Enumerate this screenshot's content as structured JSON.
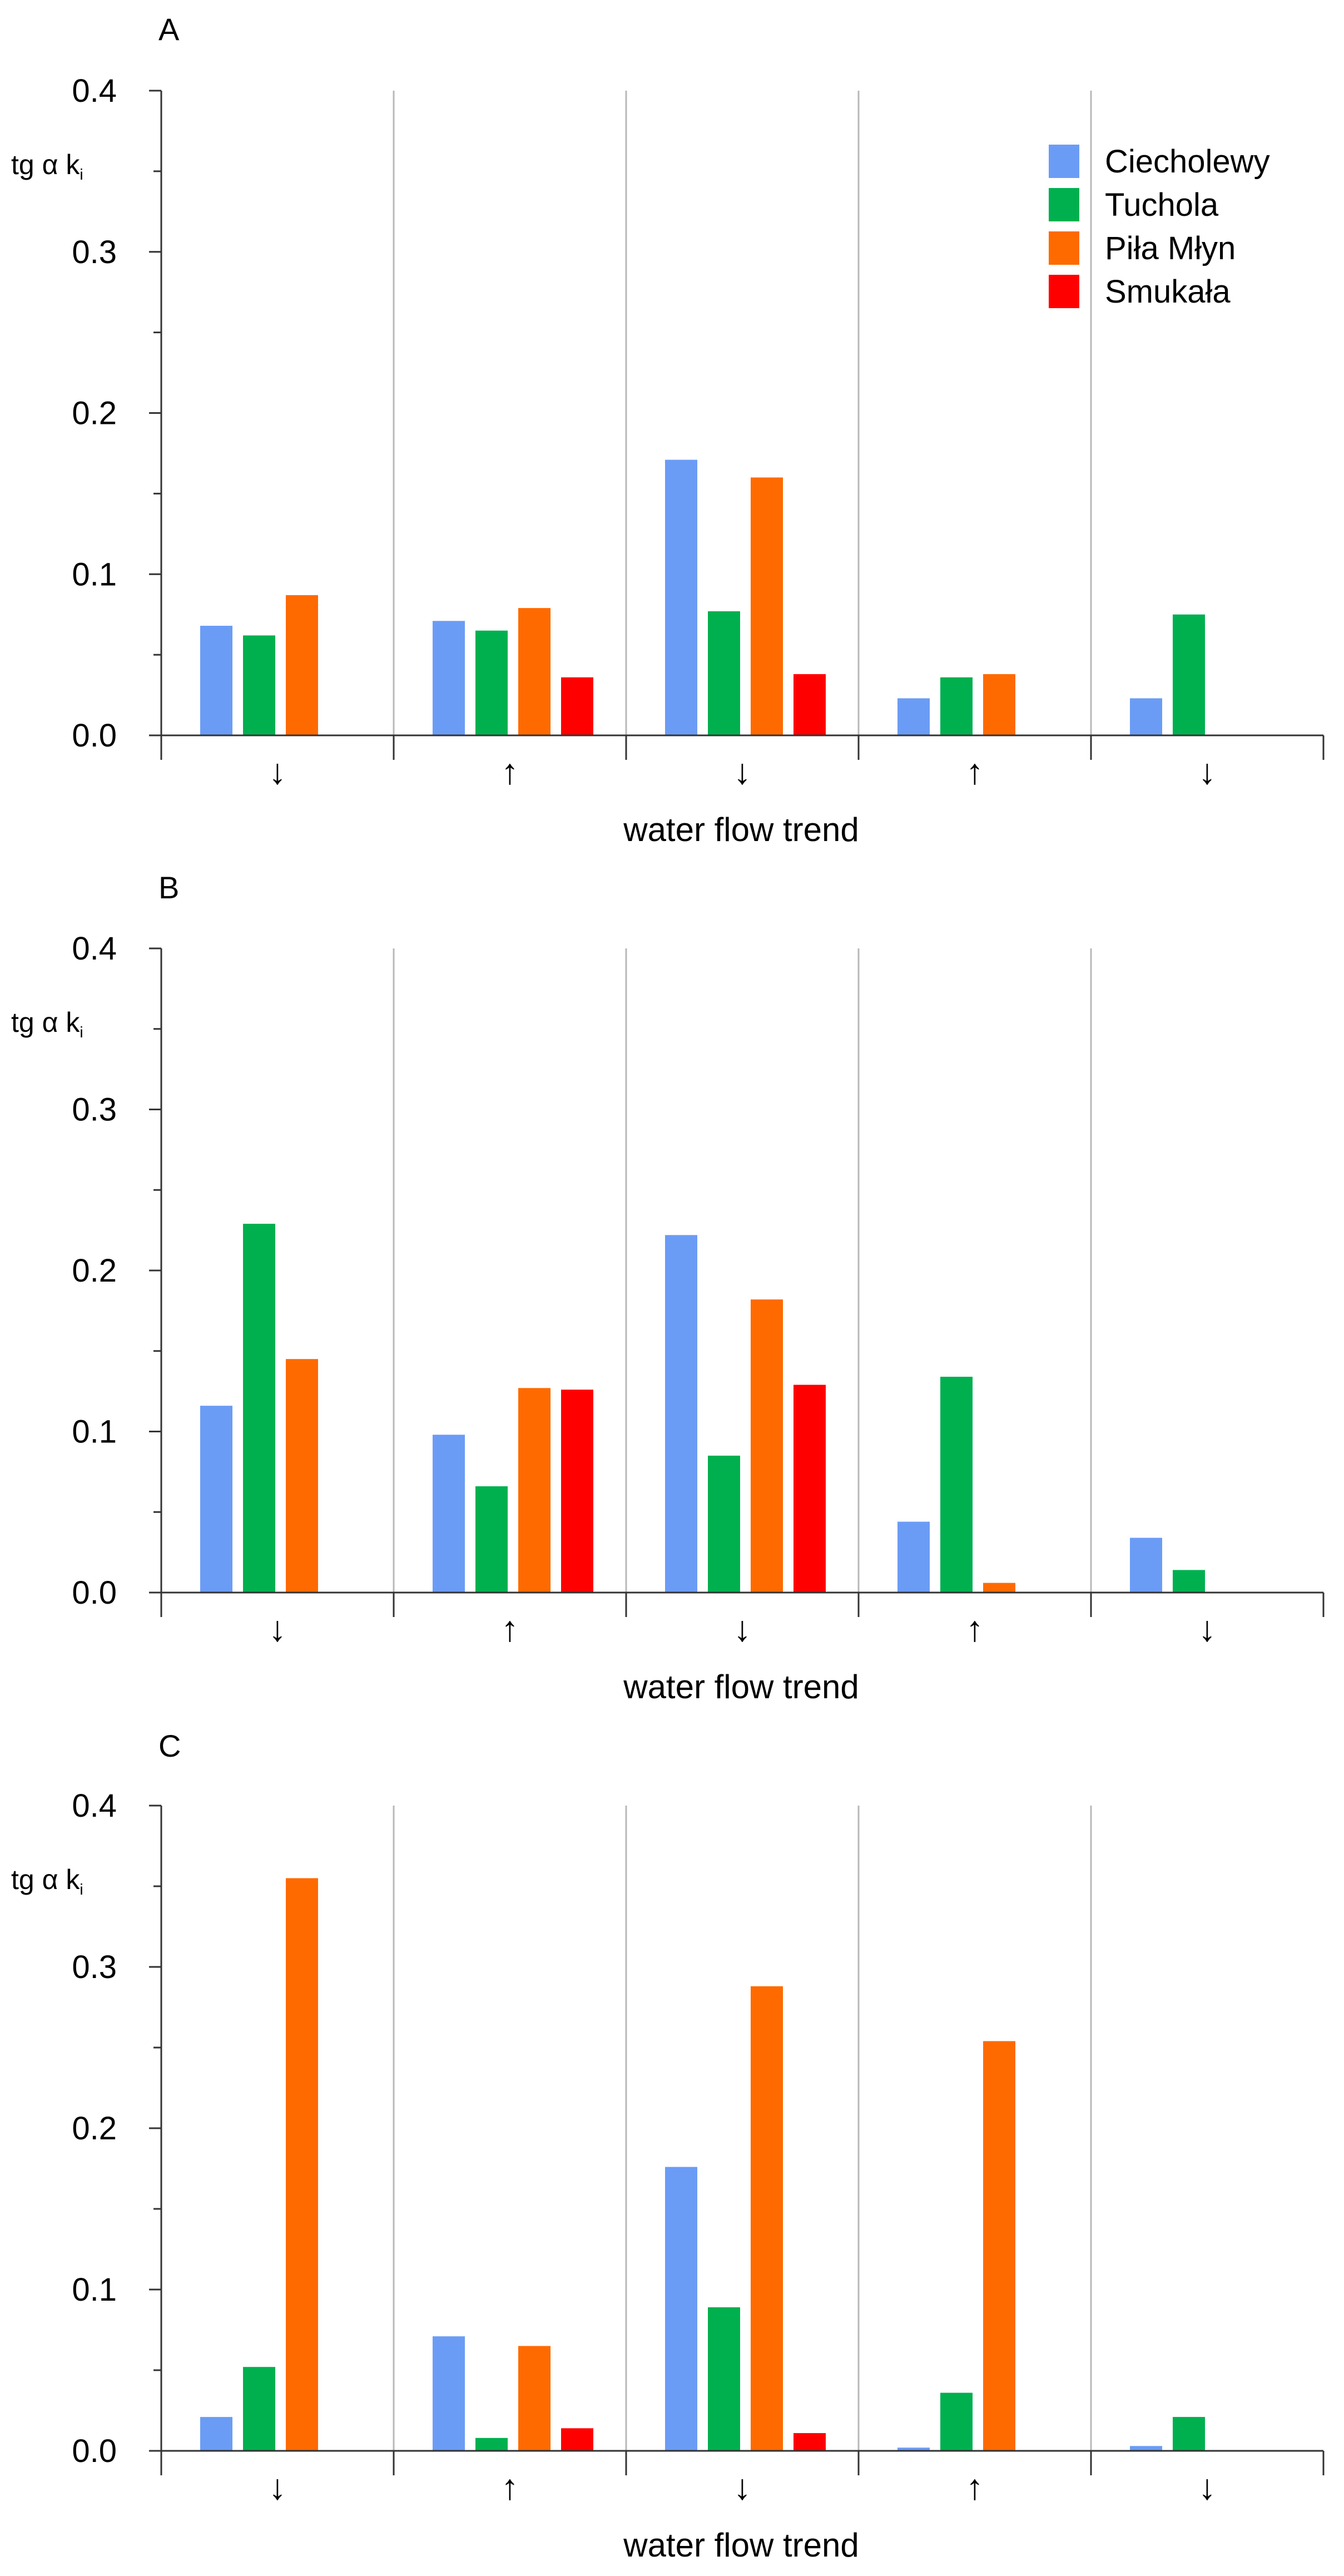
{
  "chart_data": [
    {
      "type": "bar",
      "panel": "A",
      "ylabel": "tg α k",
      "ylabel_sub": "i",
      "xlabel": "water flow trend",
      "ylim": [
        0,
        0.4
      ],
      "yticks": [
        "0.0",
        "0.1",
        "0.2",
        "0.3",
        "0.4"
      ],
      "categories": [
        "↓",
        "↑",
        "↓",
        "↑",
        "↓"
      ],
      "legend": {
        "location": "top-right",
        "entries": [
          "Ciecholewy",
          "Tuchola",
          "Piła Młyn",
          "Smukała"
        ]
      },
      "series": [
        {
          "name": "Ciecholewy",
          "color": "#6b9cf5",
          "values": [
            0.068,
            0.071,
            0.171,
            0.023,
            0.023
          ]
        },
        {
          "name": "Tuchola",
          "color": "#00b04f",
          "values": [
            0.062,
            0.065,
            0.077,
            0.036,
            0.075
          ]
        },
        {
          "name": "Piła Młyn",
          "color": "#ff6a00",
          "values": [
            0.087,
            0.079,
            0.16,
            0.038,
            null
          ]
        },
        {
          "name": "Smukała",
          "color": "#ff0000",
          "values": [
            null,
            0.036,
            0.038,
            null,
            null
          ]
        }
      ]
    },
    {
      "type": "bar",
      "panel": "B",
      "ylabel": "tg α k",
      "ylabel_sub": "i",
      "xlabel": "water flow trend",
      "ylim": [
        0,
        0.4
      ],
      "yticks": [
        "0.0",
        "0.1",
        "0.2",
        "0.3",
        "0.4"
      ],
      "categories": [
        "↓",
        "↑",
        "↓",
        "↑",
        "↓"
      ],
      "series": [
        {
          "name": "Ciecholewy",
          "color": "#6b9cf5",
          "values": [
            0.116,
            0.098,
            0.222,
            0.044,
            0.034
          ]
        },
        {
          "name": "Tuchola",
          "color": "#00b04f",
          "values": [
            0.229,
            0.066,
            0.085,
            0.134,
            0.014
          ]
        },
        {
          "name": "Piła Młyn",
          "color": "#ff6a00",
          "values": [
            0.145,
            0.127,
            0.182,
            0.006,
            null
          ]
        },
        {
          "name": "Smukała",
          "color": "#ff0000",
          "values": [
            null,
            0.126,
            0.129,
            null,
            null
          ]
        }
      ]
    },
    {
      "type": "bar",
      "panel": "C",
      "ylabel": "tg α k",
      "ylabel_sub": "i",
      "xlabel": "water flow trend",
      "ylim": [
        0,
        0.4
      ],
      "yticks": [
        "0.0",
        "0.1",
        "0.2",
        "0.3",
        "0.4"
      ],
      "categories": [
        "↓",
        "↑",
        "↓",
        "↑",
        "↓"
      ],
      "series": [
        {
          "name": "Ciecholewy",
          "color": "#6b9cf5",
          "values": [
            0.021,
            0.071,
            0.176,
            0.002,
            0.003
          ]
        },
        {
          "name": "Tuchola",
          "color": "#00b04f",
          "values": [
            0.052,
            0.008,
            0.089,
            0.036,
            0.021
          ]
        },
        {
          "name": "Piła Młyn",
          "color": "#ff6a00",
          "values": [
            0.355,
            0.065,
            0.288,
            0.254,
            null
          ]
        },
        {
          "name": "Smukała",
          "color": "#ff0000",
          "values": [
            null,
            0.014,
            0.011,
            null,
            null
          ]
        }
      ]
    }
  ]
}
